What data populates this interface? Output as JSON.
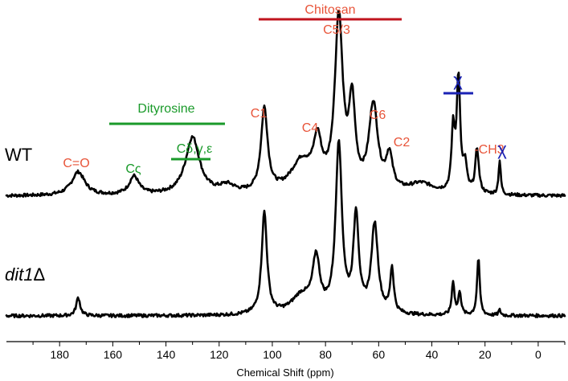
{
  "chart_data": {
    "type": "line",
    "title": "",
    "xlabel": "Chemical Shift (ppm)",
    "ylabel": "",
    "xlim": [
      200,
      -10
    ],
    "x_reversed": true,
    "x_ticks": [
      180,
      160,
      140,
      120,
      100,
      80,
      60,
      40,
      20,
      0
    ],
    "colors": {
      "trace": "#000000",
      "chitosan": "#c0141e",
      "label_orange": "#e8553a",
      "dityrosine": "#1a9a2a",
      "chi": "#1a22b4"
    },
    "series": [
      {
        "name": "WT",
        "peaks": [
          {
            "ppm": 173,
            "height": 0.09,
            "width": 3.0
          },
          {
            "ppm": 152,
            "height": 0.07,
            "width": 2.2
          },
          {
            "ppm": 130,
            "height": 0.22,
            "width": 3.2
          },
          {
            "ppm": 117,
            "height": 0.03,
            "width": 3.5
          },
          {
            "ppm": 103,
            "height": 0.32,
            "width": 1.5
          },
          {
            "ppm": 89,
            "height": 0.12,
            "width": 5.0
          },
          {
            "ppm": 83,
            "height": 0.17,
            "width": 1.8
          },
          {
            "ppm": 75,
            "height": 0.66,
            "width": 1.8
          },
          {
            "ppm": 70,
            "height": 0.32,
            "width": 1.4
          },
          {
            "ppm": 62,
            "height": 0.33,
            "width": 2.0
          },
          {
            "ppm": 56,
            "height": 0.13,
            "width": 1.5
          },
          {
            "ppm": 44,
            "height": 0.04,
            "width": 6.0
          },
          {
            "ppm": 32,
            "height": 0.23,
            "width": 0.7
          },
          {
            "ppm": 30,
            "height": 0.44,
            "width": 0.8
          },
          {
            "ppm": 27.5,
            "height": 0.1,
            "width": 0.8
          },
          {
            "ppm": 23,
            "height": 0.17,
            "width": 0.8
          },
          {
            "ppm": 14.5,
            "height": 0.13,
            "width": 0.5
          }
        ]
      },
      {
        "name": "dit1Δ",
        "peaks": [
          {
            "ppm": 173,
            "height": 0.07,
            "width": 0.9
          },
          {
            "ppm": 103,
            "height": 0.39,
            "width": 1.2
          },
          {
            "ppm": 89,
            "height": 0.07,
            "width": 4.5
          },
          {
            "ppm": 83.5,
            "height": 0.2,
            "width": 1.6
          },
          {
            "ppm": 75,
            "height": 0.65,
            "width": 1.4
          },
          {
            "ppm": 68.5,
            "height": 0.37,
            "width": 1.2
          },
          {
            "ppm": 61.5,
            "height": 0.34,
            "width": 1.5
          },
          {
            "ppm": 55,
            "height": 0.17,
            "width": 0.8
          },
          {
            "ppm": 32,
            "height": 0.13,
            "width": 0.6
          },
          {
            "ppm": 29.5,
            "height": 0.09,
            "width": 0.6
          },
          {
            "ppm": 22.5,
            "height": 0.22,
            "width": 0.6
          },
          {
            "ppm": 14.5,
            "height": 0.02,
            "width": 0.5
          }
        ]
      }
    ],
    "sample_labels": {
      "wt": "WT",
      "mutant_italic": "dit1",
      "mutant_delta": "Δ"
    },
    "annotations": {
      "chitosan": "Chitosan",
      "c53": "C5/3",
      "dityrosine": "Dityrosine",
      "c1": "C1",
      "c4": "C4",
      "c6": "C6",
      "c2": "C2",
      "co": "C=O",
      "czeta": "Cς",
      "cdelta": "Cδ,γ,ε",
      "ch3": "-CH3",
      "chi_top": "χ",
      "chi_right": "χ"
    }
  }
}
